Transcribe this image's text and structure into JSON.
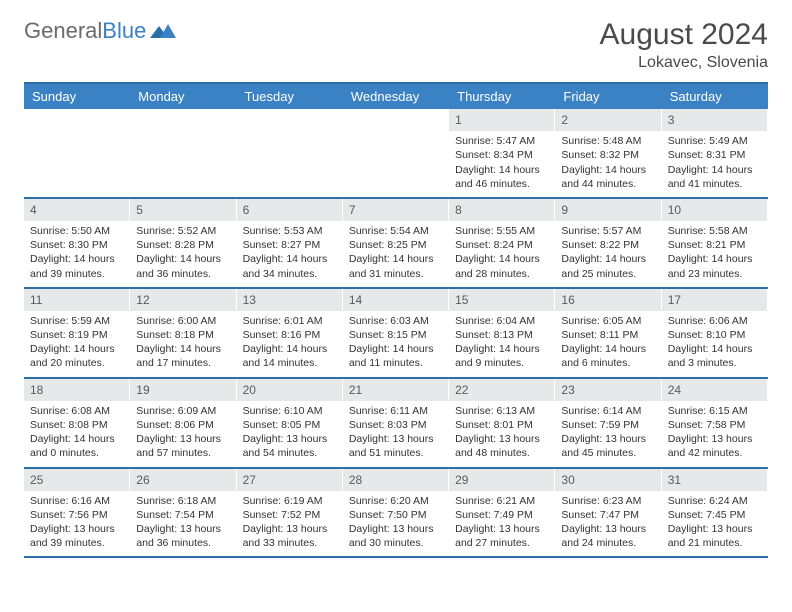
{
  "brand": {
    "part1": "General",
    "part2": "Blue"
  },
  "title": "August 2024",
  "location": "Lokavec, Slovenia",
  "colors": {
    "header_bg": "#3b82c4",
    "header_text": "#ffffff",
    "rule": "#2b6fa8",
    "daynum_bg": "#e7e8ea",
    "text": "#333333",
    "brand_gray": "#6b6b6b",
    "brand_blue": "#3b82c4",
    "page_bg": "#ffffff"
  },
  "daysOfWeek": [
    "Sunday",
    "Monday",
    "Tuesday",
    "Wednesday",
    "Thursday",
    "Friday",
    "Saturday"
  ],
  "weeks": [
    [
      {
        "num": "",
        "sunrise": "",
        "sunset": "",
        "daylight": ""
      },
      {
        "num": "",
        "sunrise": "",
        "sunset": "",
        "daylight": ""
      },
      {
        "num": "",
        "sunrise": "",
        "sunset": "",
        "daylight": ""
      },
      {
        "num": "",
        "sunrise": "",
        "sunset": "",
        "daylight": ""
      },
      {
        "num": "1",
        "sunrise": "Sunrise: 5:47 AM",
        "sunset": "Sunset: 8:34 PM",
        "daylight": "Daylight: 14 hours and 46 minutes."
      },
      {
        "num": "2",
        "sunrise": "Sunrise: 5:48 AM",
        "sunset": "Sunset: 8:32 PM",
        "daylight": "Daylight: 14 hours and 44 minutes."
      },
      {
        "num": "3",
        "sunrise": "Sunrise: 5:49 AM",
        "sunset": "Sunset: 8:31 PM",
        "daylight": "Daylight: 14 hours and 41 minutes."
      }
    ],
    [
      {
        "num": "4",
        "sunrise": "Sunrise: 5:50 AM",
        "sunset": "Sunset: 8:30 PM",
        "daylight": "Daylight: 14 hours and 39 minutes."
      },
      {
        "num": "5",
        "sunrise": "Sunrise: 5:52 AM",
        "sunset": "Sunset: 8:28 PM",
        "daylight": "Daylight: 14 hours and 36 minutes."
      },
      {
        "num": "6",
        "sunrise": "Sunrise: 5:53 AM",
        "sunset": "Sunset: 8:27 PM",
        "daylight": "Daylight: 14 hours and 34 minutes."
      },
      {
        "num": "7",
        "sunrise": "Sunrise: 5:54 AM",
        "sunset": "Sunset: 8:25 PM",
        "daylight": "Daylight: 14 hours and 31 minutes."
      },
      {
        "num": "8",
        "sunrise": "Sunrise: 5:55 AM",
        "sunset": "Sunset: 8:24 PM",
        "daylight": "Daylight: 14 hours and 28 minutes."
      },
      {
        "num": "9",
        "sunrise": "Sunrise: 5:57 AM",
        "sunset": "Sunset: 8:22 PM",
        "daylight": "Daylight: 14 hours and 25 minutes."
      },
      {
        "num": "10",
        "sunrise": "Sunrise: 5:58 AM",
        "sunset": "Sunset: 8:21 PM",
        "daylight": "Daylight: 14 hours and 23 minutes."
      }
    ],
    [
      {
        "num": "11",
        "sunrise": "Sunrise: 5:59 AM",
        "sunset": "Sunset: 8:19 PM",
        "daylight": "Daylight: 14 hours and 20 minutes."
      },
      {
        "num": "12",
        "sunrise": "Sunrise: 6:00 AM",
        "sunset": "Sunset: 8:18 PM",
        "daylight": "Daylight: 14 hours and 17 minutes."
      },
      {
        "num": "13",
        "sunrise": "Sunrise: 6:01 AM",
        "sunset": "Sunset: 8:16 PM",
        "daylight": "Daylight: 14 hours and 14 minutes."
      },
      {
        "num": "14",
        "sunrise": "Sunrise: 6:03 AM",
        "sunset": "Sunset: 8:15 PM",
        "daylight": "Daylight: 14 hours and 11 minutes."
      },
      {
        "num": "15",
        "sunrise": "Sunrise: 6:04 AM",
        "sunset": "Sunset: 8:13 PM",
        "daylight": "Daylight: 14 hours and 9 minutes."
      },
      {
        "num": "16",
        "sunrise": "Sunrise: 6:05 AM",
        "sunset": "Sunset: 8:11 PM",
        "daylight": "Daylight: 14 hours and 6 minutes."
      },
      {
        "num": "17",
        "sunrise": "Sunrise: 6:06 AM",
        "sunset": "Sunset: 8:10 PM",
        "daylight": "Daylight: 14 hours and 3 minutes."
      }
    ],
    [
      {
        "num": "18",
        "sunrise": "Sunrise: 6:08 AM",
        "sunset": "Sunset: 8:08 PM",
        "daylight": "Daylight: 14 hours and 0 minutes."
      },
      {
        "num": "19",
        "sunrise": "Sunrise: 6:09 AM",
        "sunset": "Sunset: 8:06 PM",
        "daylight": "Daylight: 13 hours and 57 minutes."
      },
      {
        "num": "20",
        "sunrise": "Sunrise: 6:10 AM",
        "sunset": "Sunset: 8:05 PM",
        "daylight": "Daylight: 13 hours and 54 minutes."
      },
      {
        "num": "21",
        "sunrise": "Sunrise: 6:11 AM",
        "sunset": "Sunset: 8:03 PM",
        "daylight": "Daylight: 13 hours and 51 minutes."
      },
      {
        "num": "22",
        "sunrise": "Sunrise: 6:13 AM",
        "sunset": "Sunset: 8:01 PM",
        "daylight": "Daylight: 13 hours and 48 minutes."
      },
      {
        "num": "23",
        "sunrise": "Sunrise: 6:14 AM",
        "sunset": "Sunset: 7:59 PM",
        "daylight": "Daylight: 13 hours and 45 minutes."
      },
      {
        "num": "24",
        "sunrise": "Sunrise: 6:15 AM",
        "sunset": "Sunset: 7:58 PM",
        "daylight": "Daylight: 13 hours and 42 minutes."
      }
    ],
    [
      {
        "num": "25",
        "sunrise": "Sunrise: 6:16 AM",
        "sunset": "Sunset: 7:56 PM",
        "daylight": "Daylight: 13 hours and 39 minutes."
      },
      {
        "num": "26",
        "sunrise": "Sunrise: 6:18 AM",
        "sunset": "Sunset: 7:54 PM",
        "daylight": "Daylight: 13 hours and 36 minutes."
      },
      {
        "num": "27",
        "sunrise": "Sunrise: 6:19 AM",
        "sunset": "Sunset: 7:52 PM",
        "daylight": "Daylight: 13 hours and 33 minutes."
      },
      {
        "num": "28",
        "sunrise": "Sunrise: 6:20 AM",
        "sunset": "Sunset: 7:50 PM",
        "daylight": "Daylight: 13 hours and 30 minutes."
      },
      {
        "num": "29",
        "sunrise": "Sunrise: 6:21 AM",
        "sunset": "Sunset: 7:49 PM",
        "daylight": "Daylight: 13 hours and 27 minutes."
      },
      {
        "num": "30",
        "sunrise": "Sunrise: 6:23 AM",
        "sunset": "Sunset: 7:47 PM",
        "daylight": "Daylight: 13 hours and 24 minutes."
      },
      {
        "num": "31",
        "sunrise": "Sunrise: 6:24 AM",
        "sunset": "Sunset: 7:45 PM",
        "daylight": "Daylight: 13 hours and 21 minutes."
      }
    ]
  ]
}
